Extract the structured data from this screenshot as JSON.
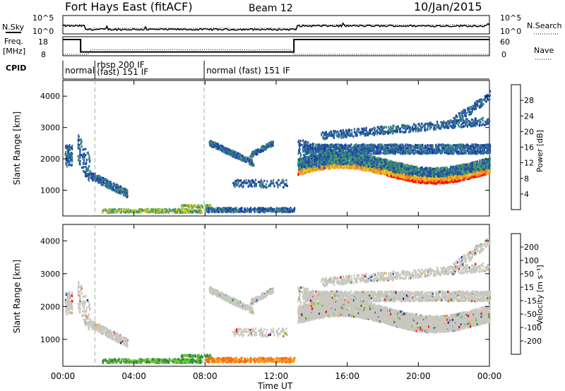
{
  "header": {
    "radar": "Fort Hays East (fitACF)",
    "beam": "Beam 12",
    "date": "10/Jan/2015"
  },
  "strips": {
    "noise": {
      "left_label": "N.Sky",
      "right_label": "N.Search",
      "left_ticks": [
        "10^5",
        "10^0"
      ],
      "right_ticks": [
        "10^5",
        "10^0"
      ]
    },
    "freq": {
      "left_label_1": "Freq.",
      "left_label_2": "[MHz]",
      "right_label": "Nave",
      "left_ticks": [
        "18",
        "8"
      ],
      "right_ticks": [
        "60",
        "0"
      ],
      "freq_segments": [
        {
          "start_h": 0.0,
          "end_h": 1.0,
          "mhz": 18
        },
        {
          "start_h": 1.0,
          "end_h": 13.0,
          "mhz": 10
        },
        {
          "start_h": 13.0,
          "end_h": 24.0,
          "mhz": 18
        }
      ]
    },
    "cpid": {
      "label": "CPID",
      "segments": [
        {
          "start_h": 0.0,
          "label": "normal",
          "label2": ""
        },
        {
          "start_h": 1.8,
          "label": "rbsp 200 IF",
          "label2": "(fast) 151 IF"
        },
        {
          "start_h": 7.95,
          "label": "normal (fast) 151 IF",
          "label2": ""
        }
      ]
    }
  },
  "chart_data": [
    {
      "type": "heatmap",
      "quantity": "Power",
      "ylabel": "Slant Range [km]",
      "xlim_hours": [
        0,
        24
      ],
      "ylim_km": [
        180,
        4500
      ],
      "y_ticks": [
        1000,
        2000,
        3000,
        4000
      ],
      "colorbar_label": "Power [dB]",
      "colorbar_ticks": [
        "28",
        "24",
        "20",
        "16",
        "12",
        "8",
        "4"
      ],
      "colorbar_colors": [
        "#0000ff",
        "#1f3fa8",
        "#2a62a0",
        "#3d8a7a",
        "#4fa85a",
        "#9cc63a",
        "#e0d020",
        "#f4a52a",
        "#f57a1e",
        "#ff3a10",
        "#ff0000"
      ],
      "colorbar_range": [
        0,
        30
      ]
    },
    {
      "type": "heatmap",
      "quantity": "Velocity",
      "ylabel": "Slant Range [km]",
      "xlabel": "Time UT",
      "xlim_hours": [
        0,
        24
      ],
      "ylim_km": [
        180,
        4500
      ],
      "y_ticks": [
        1000,
        2000,
        3000,
        4000
      ],
      "x_ticks": [
        "00:00",
        "04:00",
        "08:00",
        "12:00",
        "16:00",
        "20:00",
        "00:00"
      ],
      "colorbar_label": "Velocity [m s⁻¹]",
      "colorbar_ticks": [
        "200",
        "100",
        "50",
        "15",
        "-15",
        "-50",
        "-100",
        "-200"
      ],
      "colorbar_colors": [
        "#1b2fa0",
        "#2a4fb8",
        "#2f8a3a",
        "#6dc43a",
        "#c8c8c0",
        "#f5a020",
        "#f56a10",
        "#e02010",
        "#ff0000"
      ],
      "colorbar_range": [
        -250,
        250
      ]
    }
  ]
}
